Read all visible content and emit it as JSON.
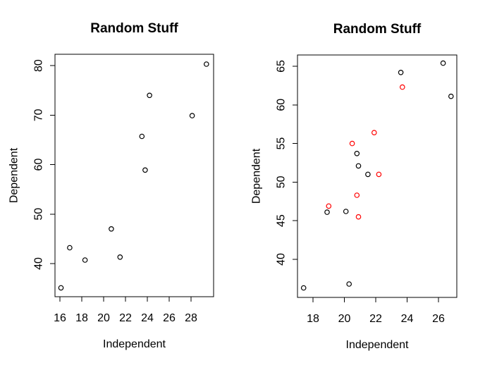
{
  "figure": {
    "background": "#ffffff",
    "frame_color": "#000000",
    "panel_count": 2
  },
  "chart_data": [
    {
      "type": "scatter",
      "title": "Random Stuff",
      "xlabel": "Independent",
      "ylabel": "Dependent",
      "xlim": [
        15.55,
        30.06
      ],
      "ylim": [
        33.3,
        82.3
      ],
      "xticks": [
        16,
        18,
        20,
        22,
        24,
        26,
        28
      ],
      "yticks": [
        40,
        50,
        60,
        70,
        80
      ],
      "grid": false,
      "legend": "none",
      "marker": "open-circle",
      "series": [
        {
          "name": "black-points",
          "color": "#000000",
          "points": [
            [
              16.1,
              35.1
            ],
            [
              16.9,
              43.2
            ],
            [
              18.3,
              40.7
            ],
            [
              20.7,
              47.0
            ],
            [
              21.5,
              41.3
            ],
            [
              23.5,
              65.7
            ],
            [
              23.8,
              58.9
            ],
            [
              24.2,
              74.0
            ],
            [
              28.1,
              69.9
            ],
            [
              29.4,
              80.3
            ]
          ]
        }
      ]
    },
    {
      "type": "scatter",
      "title": "Random Stuff",
      "xlabel": "Independent",
      "ylabel": "Dependent",
      "xlim": [
        17.01,
        27.17
      ],
      "ylim": [
        35.07,
        66.46
      ],
      "xticks": [
        18,
        20,
        22,
        24,
        26
      ],
      "yticks": [
        40,
        45,
        50,
        55,
        60,
        65
      ],
      "grid": false,
      "legend": "none",
      "marker": "open-circle",
      "series": [
        {
          "name": "black-points",
          "color": "#000000",
          "points": [
            [
              17.4,
              36.3
            ],
            [
              18.9,
              46.1
            ],
            [
              20.1,
              46.2
            ],
            [
              20.3,
              36.8
            ],
            [
              20.8,
              53.7
            ],
            [
              20.9,
              52.1
            ],
            [
              21.5,
              51.0
            ],
            [
              23.6,
              64.2
            ],
            [
              26.3,
              65.4
            ],
            [
              26.8,
              61.1
            ]
          ]
        },
        {
          "name": "red-points",
          "color": "#ff0000",
          "points": [
            [
              19.0,
              46.9
            ],
            [
              20.5,
              55.0
            ],
            [
              20.8,
              48.3
            ],
            [
              20.9,
              45.5
            ],
            [
              21.9,
              56.4
            ],
            [
              22.2,
              51.0
            ],
            [
              23.7,
              62.3
            ]
          ]
        }
      ]
    }
  ]
}
